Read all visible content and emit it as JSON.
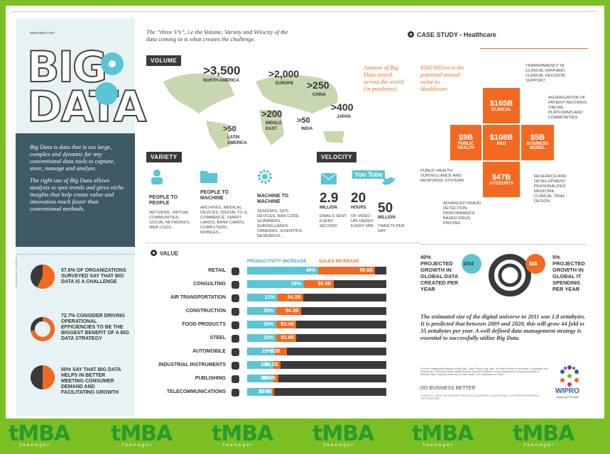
{
  "header": {
    "site": "www.wipro.com",
    "title_line1": "BIG",
    "title_line2": "DATA"
  },
  "intro": {
    "p1": "Big Data is data that is too large, complex and dynamic for any conventional data tools to capture, store, manage and analyze.",
    "p2": "The right use of Big Data allows analysts to spot trends and gives niche insights that help create value and innovation much faster than conventional methods."
  },
  "three_vs": "The “three V’s”, i.e the Volume, Variety and Velocity of the data coming in is what creates the challenge.",
  "volume": {
    "head": "VOLUME",
    "note": "Amount of Big Data stored across the world (in petabytes)",
    "regions": [
      {
        "value": ">3,500",
        "name": "NORTH AMERICA"
      },
      {
        "value": ">2,000",
        "name": "EUROPE"
      },
      {
        "value": ">250",
        "name": "CHINA"
      },
      {
        "value": ">400",
        "name": "JAPAN"
      },
      {
        "value": ">200",
        "name": "MIDDLE EAST"
      },
      {
        "value": ">50",
        "name": "INDIA"
      },
      {
        "value": ">50",
        "name": "LATIN AMERICA"
      }
    ]
  },
  "variety": {
    "head": "VARIETY",
    "items": [
      {
        "title": "PEOPLE TO PEOPLE",
        "desc": "NETIZENS, VIRTUAL COMMUNITIES, SOCIAL NETWORKS, WEB LOGS..."
      },
      {
        "title": "PEOPLE TO MACHINE",
        "desc": "ARCHIVES, MEDICAL DEVICES, DIGITAL TV, E-COMMERCE, SMART CARDS, BANK CARDS, COMPUTERS, MOBILES..."
      },
      {
        "title": "MACHINE TO MACHINE",
        "desc": "SENSORS, GPS DEVICES, BAR CODE SCANNERS, SURVEILLANCE CAMERAS, SCIENTIFIC RESEARCH..."
      }
    ]
  },
  "velocity": {
    "head": "VELOCITY",
    "items": [
      {
        "value": "2.9",
        "unit": "MILLION",
        "desc": "EMAILS SENT EVERY SECOND"
      },
      {
        "value": "20",
        "unit": "HOURS",
        "desc": "OF VIDEO UPLOADED EVERY MIN"
      },
      {
        "value": "50",
        "unit": "MILLION",
        "desc": "TWEETS PER DAY"
      }
    ],
    "youtube": "You Tube"
  },
  "case": {
    "head": "CASE STUDY - Healthcare",
    "note": "$300 billion is the potential annual value to Healthcare",
    "blocks": [
      {
        "value": "$165B",
        "label": "CLINICAL"
      },
      {
        "value": "$9B",
        "label": "PUBLIC HEALTH"
      },
      {
        "value": "$108B",
        "label": "R&D"
      },
      {
        "value": "$5B",
        "label": "BUSINESS MODEL"
      },
      {
        "value": "$47B",
        "label": "ACCOUNTS"
      }
    ],
    "notes": [
      "TRANSPARENCY IN CLINICAL DATA AND CLINICAL DECISION SUPPORT",
      "AGGREGATION OF PATIENT RECORDS, ONLINE PLATFORMS AND COMMUNITIES",
      "PUBLIC HEALTH SURVEILLANCE AND RESPONSE SYSTEMS",
      "RESEARCH AND DEVELOPMENT; PERSONALIZED MEDICINE; CLINICAL TRIAL DESIGN",
      "ADVANCED FRAUD DETECTION; PERFORMANCE BASED DRUG PRICING"
    ]
  },
  "stats_left": [
    {
      "text": "57.6% OF ORGANIZATIONS SURVEYED SAY THAT BIG DATA IS A CHALLENGE",
      "pct": 57.6
    },
    {
      "text": "72.7% CONSIDER DRIVING OPERATIONAL EFFICIENCIES TO BE THE BIGGEST BENEFIT OF A BIG DATA STRATEGY",
      "pct": 72.7
    },
    {
      "text": "50% SAY THAT BIG DATA HELPS IN BETTER MEETING CONSUMER DEMAND AND FACILITATING GROWTH",
      "pct": 50
    }
  ],
  "chart_data": {
    "type": "bar",
    "title": "VALUE",
    "series": [
      {
        "name": "PRODUCTIVITY INCREASE",
        "values": [
          49,
          39,
          21,
          20,
          20,
          20,
          19,
          18,
          18,
          17
        ]
      },
      {
        "name": "SALES INCREASE",
        "values": [
          9.6,
          5.0,
          4.3,
          4.2,
          3.4,
          3.4,
          2,
          1.2,
          0.8,
          0.4
        ]
      }
    ],
    "categories": [
      "RETAIL",
      "CONSULTING",
      "AIR TRANSPORTATION",
      "CONSTRUCTION",
      "FOOD PRODUCTS",
      "STEEL",
      "AUTOMOBILE",
      "INDUSTRIAL INSTRUMENTS",
      "PUBLISHING",
      "TELECOMMUNICATIONS"
    ],
    "labels_prod": [
      "49%",
      "39%",
      "21%",
      "20%",
      "20%",
      "20%",
      "19%",
      "18%",
      "18%",
      "17%"
    ],
    "labels_sales": [
      "$9.6B",
      "$5.0B",
      "$4.3B",
      "$4.2B",
      "$3.4B",
      "$3.4B",
      "$2B",
      "$1.2B",
      "$0.8B",
      "$0.4B"
    ]
  },
  "growth": {
    "left": "40% PROJECTED GROWTH IN GLOBAL DATA CREATED PER YEAR",
    "right": "5% PROJECTED GROWTH IN GLOBAL IT SPENDING PER YEAR",
    "bubble1": "1010",
    "bubble2": "$$$"
  },
  "digital": "The estimated size of the digital universe in 2011 was 1.8 zettabytes. It is predicted that between 2009 and 2020, this will grow 44 fold to 35 zettabytes per year. A well defined data management strategy is essential to successfully utilize Big Data.",
  "sources": "Sources: Reaping the Rewards of Big Data - Wipro Report | Big Data: The Next Frontier for Innovation, Competition and Productivity - McKinsey Global Institute Report | Syncsort, Sedcode Group | Measuring the Business Impacts of Effective Data - study by University of Texas, Austin | US Department of Labour",
  "footer": {
    "cta": "DO BUSINESS BETTER",
    "tag": "NYSE:WIT | OVER 130,000 EMPLOYEES | 54 COUNTRIES | CONSULTING | SYSTEM INTEGRATION | OUTSOURCING",
    "brand": "WIPRO",
    "brand_tag": "Applying Thought",
    "credit": "Visualization: Gravitiflex"
  },
  "banner": {
    "logo": "tMBA",
    "sub": "teenager"
  },
  "colors": {
    "orange": "#f26a21",
    "cyan": "#5bc5d3",
    "dark": "#3a3a3a",
    "green": "#7cbf23"
  }
}
